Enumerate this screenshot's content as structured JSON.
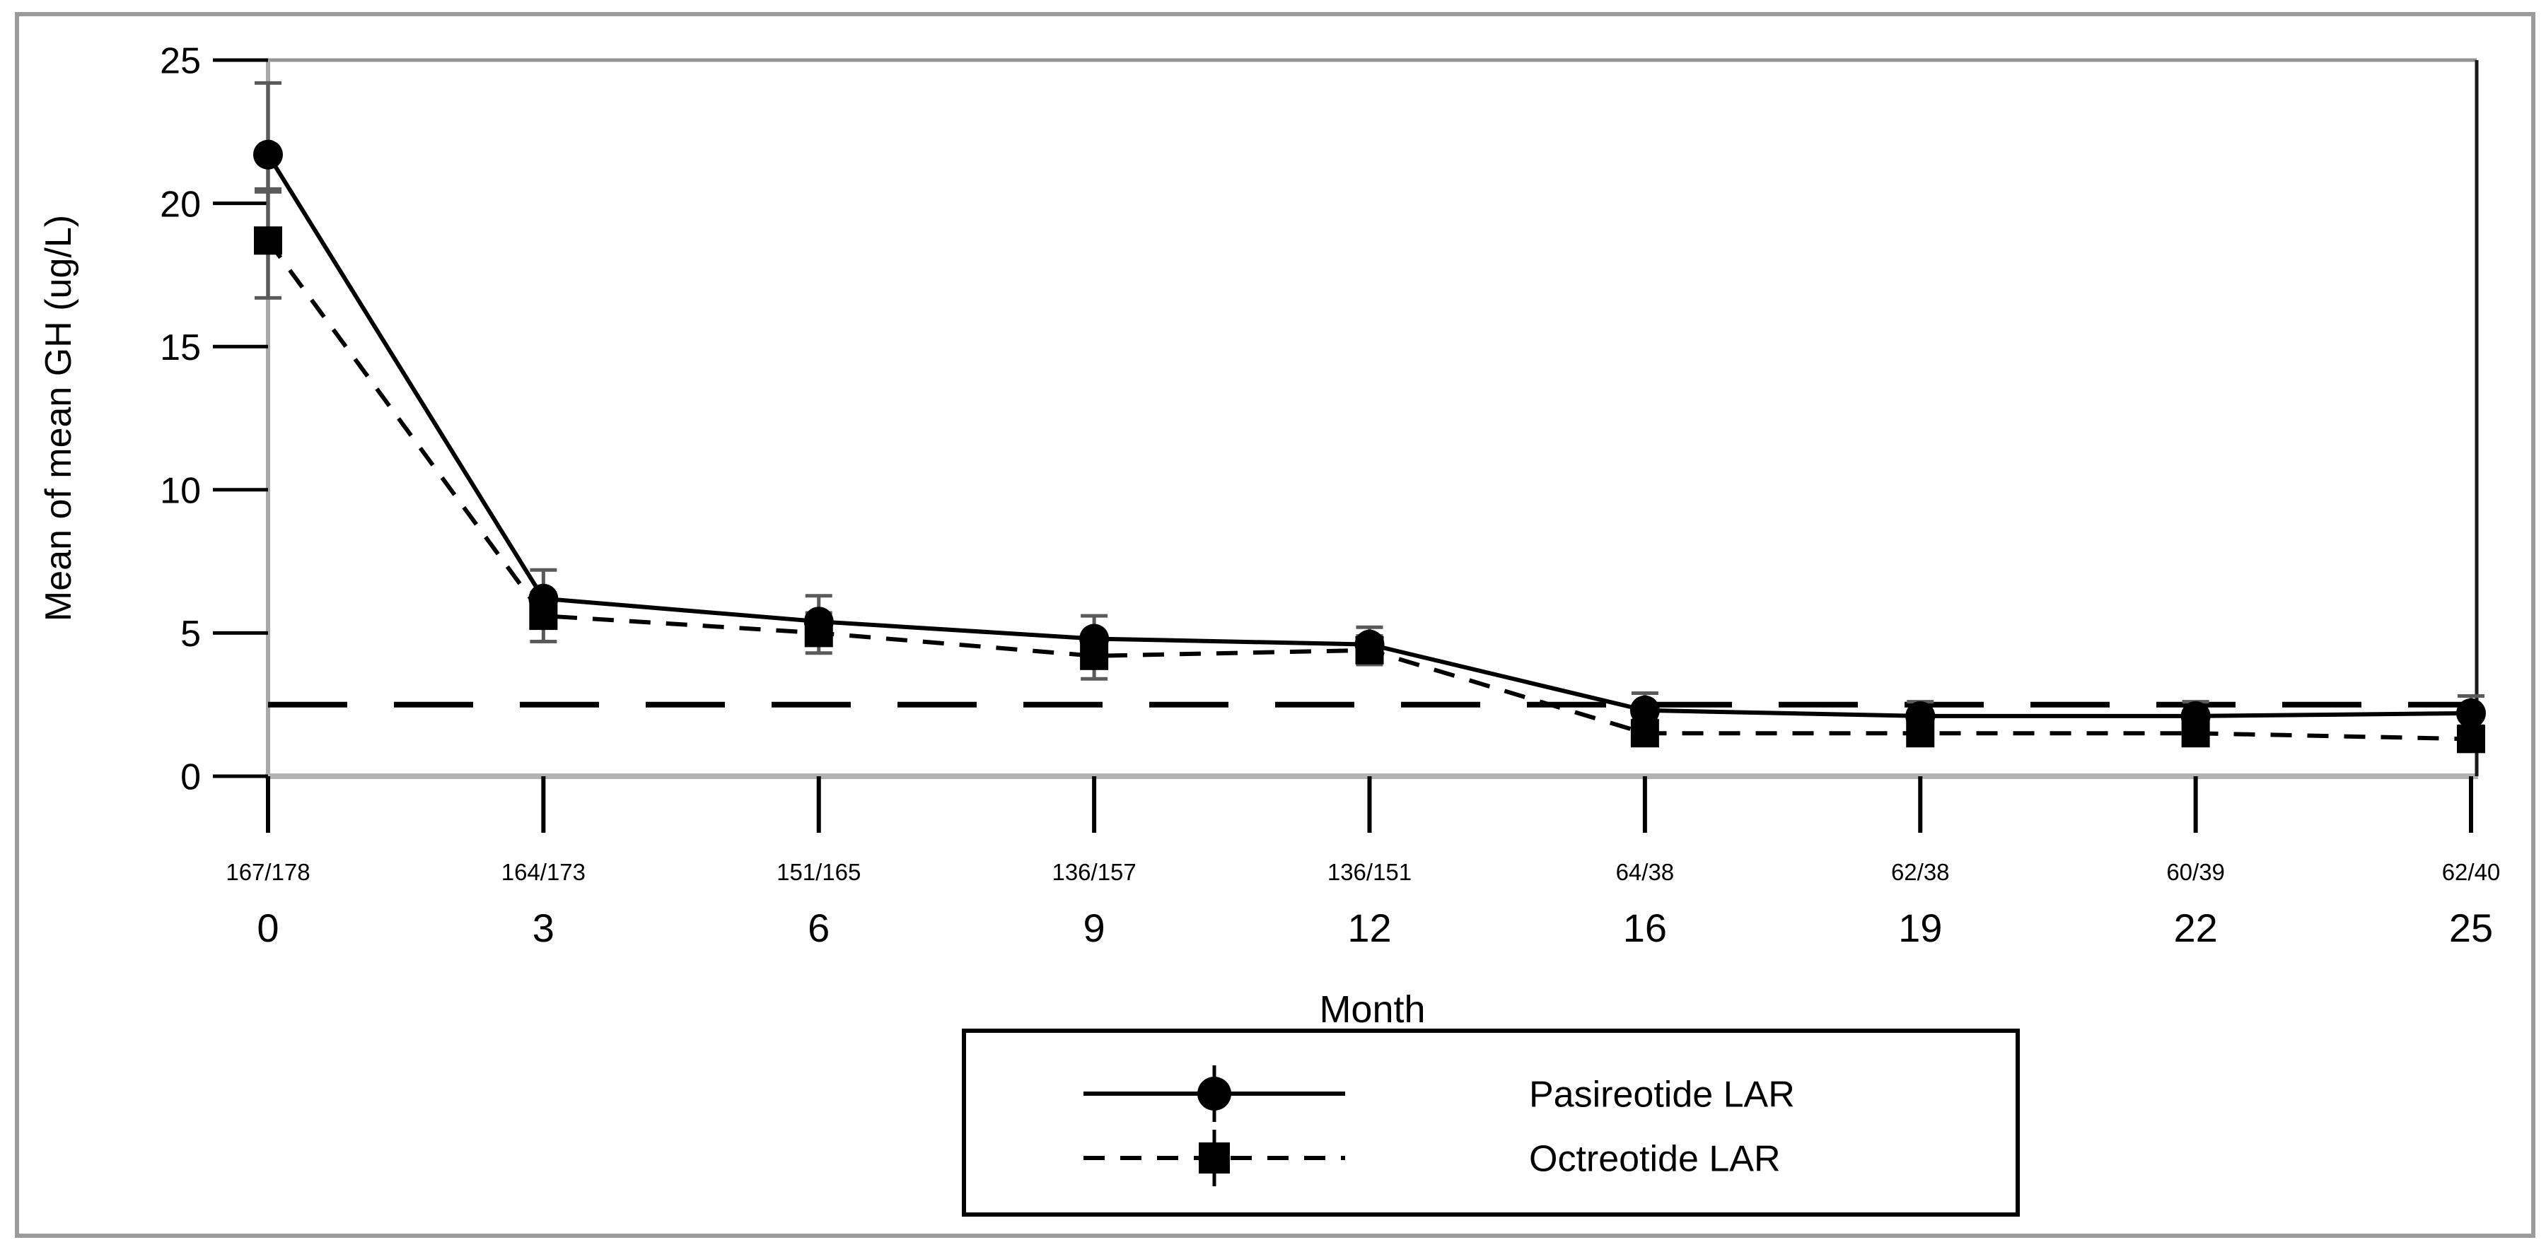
{
  "figure": {
    "y_axis_label": "Mean of mean GH (ug/L)",
    "x_axis_label": "Month",
    "legend": {
      "pasireotide_label": "Pasireotide LAR",
      "octreotide_label": "Octreotide LAR"
    }
  },
  "chart_data": {
    "type": "line",
    "title": "",
    "xlabel": "Month",
    "ylabel": "Mean of mean GH (ug/L)",
    "ylim": [
      0,
      25
    ],
    "yticks": [
      0,
      5,
      10,
      15,
      20,
      25
    ],
    "grid": false,
    "x_tick_spacing": "equal",
    "categories_months": [
      "0",
      "3",
      "6",
      "9",
      "12",
      "16",
      "19",
      "22",
      "25"
    ],
    "n_patient_labels": [
      "167/178",
      "164/173",
      "151/165",
      "136/157",
      "136/151",
      "64/38",
      "62/38",
      "60/39",
      "62/40"
    ],
    "reference_line_y": 2.5,
    "legend_position": "bottom-center-boxed",
    "series": [
      {
        "name": "Pasireotide LAR",
        "marker": "circle",
        "line_style": "solid",
        "color": "#000000",
        "values": [
          21.7,
          6.2,
          5.4,
          4.8,
          4.6,
          2.3,
          2.1,
          2.1,
          2.2
        ],
        "err_low": [
          1.3,
          0.8,
          0.7,
          0.7,
          0.6,
          0.6,
          0.5,
          0.5,
          0.5
        ],
        "err_high": [
          2.5,
          1.0,
          0.9,
          0.8,
          0.6,
          0.6,
          0.5,
          0.5,
          0.6
        ]
      },
      {
        "name": "Octreotide LAR",
        "marker": "square",
        "line_style": "dashed",
        "color": "#000000",
        "values": [
          18.7,
          5.6,
          5.0,
          4.2,
          4.4,
          1.5,
          1.5,
          1.5,
          1.3
        ],
        "err_low": [
          2.0,
          0.9,
          0.7,
          0.8,
          0.5,
          0.4,
          0.35,
          0.35,
          0.4
        ],
        "err_high": [
          1.8,
          0.8,
          0.7,
          0.7,
          0.5,
          0.45,
          0.4,
          0.35,
          0.45
        ]
      }
    ],
    "colors": {
      "series": "#000000",
      "error_bar": "#5a5a5a",
      "frame_gray": "#949494",
      "axis_gray": "#a8a8a8",
      "bottom_axis_gray": "#b2b2b2",
      "right_frame": "#1a1a1a",
      "outer_border": "#9b9b9b",
      "text": "#000000",
      "legend_border": "#000000",
      "background": "#ffffff"
    }
  }
}
